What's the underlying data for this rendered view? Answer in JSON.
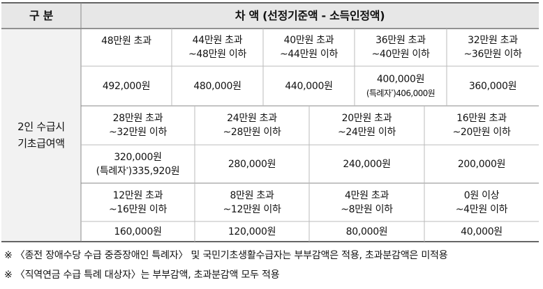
{
  "header": {
    "col1": "구 분",
    "col2": "차 액 (선정기준액 - 소득인정액)"
  },
  "row_label": [
    "2인 수급시",
    "기초급여액"
  ],
  "band1": {
    "ranges": [
      [
        "48만원 초과"
      ],
      [
        "44만원 초과",
        "~48만원 이하"
      ],
      [
        "40만원 초과",
        "~44만원 이하"
      ],
      [
        "36만원 초과",
        "~40만원 이하"
      ],
      [
        "32만원 초과",
        "~36만원 이하"
      ]
    ],
    "amounts": [
      [
        "492,000원"
      ],
      [
        "480,000원"
      ],
      [
        "440,000원"
      ],
      [
        "400,000원",
        "(특례자",
        "*",
        ")406,000원"
      ],
      [
        "360,000원"
      ]
    ]
  },
  "band2": {
    "ranges": [
      [
        "28만원 초과",
        "~32만원 이하"
      ],
      [
        "24만원 초과",
        "~28만원 이하"
      ],
      [
        "20만원 초과",
        "~24만원 이하"
      ],
      [
        "16만원 초과",
        "~20만원 이하"
      ]
    ],
    "amounts": [
      [
        "320,000원",
        "(특례자",
        "*",
        ")335,920원"
      ],
      [
        "280,000원"
      ],
      [
        "240,000원"
      ],
      [
        "200,000원"
      ]
    ]
  },
  "band3": {
    "ranges": [
      [
        "12만원 초과",
        "~16만원 이하"
      ],
      [
        "8만원 초과",
        "~12만원 이하"
      ],
      [
        "4만원 초과",
        "~8만원 이하"
      ],
      [
        "0원 이상",
        "~4만원 이하"
      ]
    ],
    "amounts": [
      [
        "160,000원"
      ],
      [
        "120,000원"
      ],
      [
        "80,000원"
      ],
      [
        "40,000원"
      ]
    ]
  },
  "notes": [
    "※ 〈종전 장애수당 수급 중증장애인 특례자〉 및 국민기초생활수급자는 부부감액은 적용, 초과분감액은 미적용",
    "※ 〈직역연금 수급 특례 대상자〉는 부부감액, 초과분감액 모두 적용"
  ]
}
